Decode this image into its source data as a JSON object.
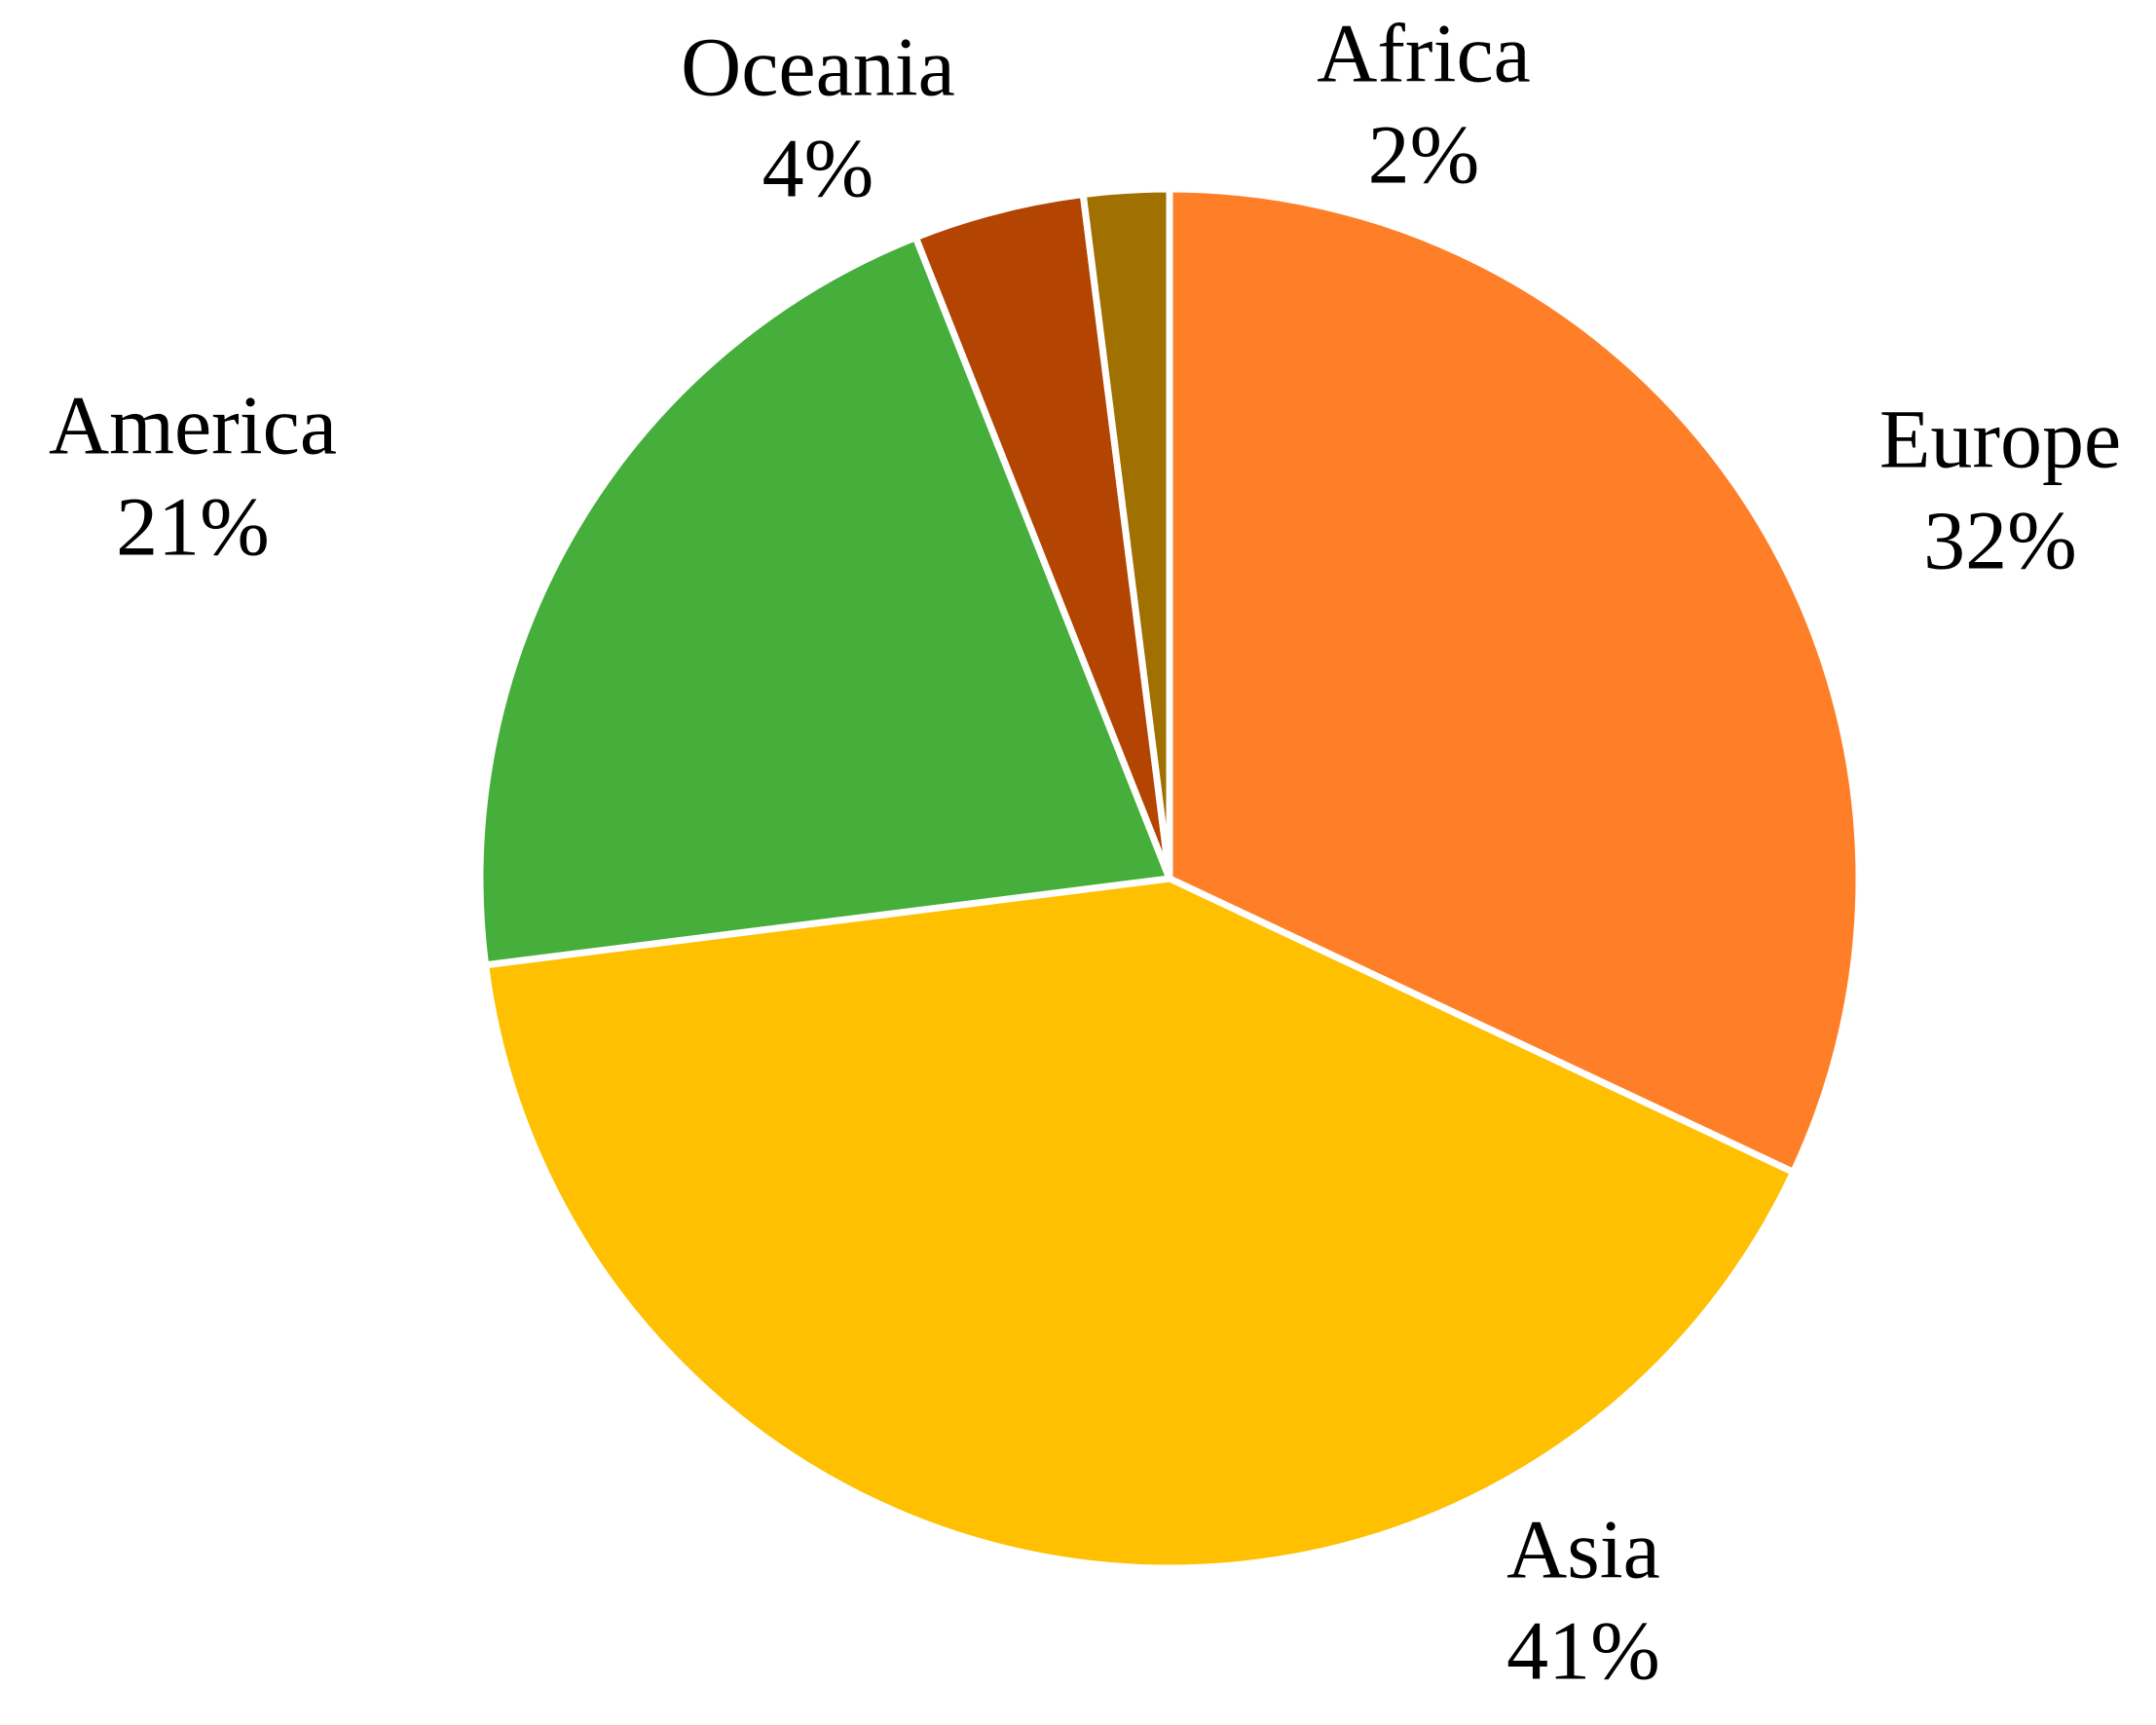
{
  "chart_data": {
    "type": "pie",
    "categories": [
      "Europe",
      "Asia",
      "America",
      "Oceania",
      "Africa"
    ],
    "values": [
      32,
      41,
      21,
      4,
      2
    ],
    "value_labels": [
      "32%",
      "41%",
      "21%",
      "4%",
      "2%"
    ],
    "colors": [
      "#fe7f27",
      "#fec000",
      "#46ae3b",
      "#b34402",
      "#a07000"
    ]
  }
}
